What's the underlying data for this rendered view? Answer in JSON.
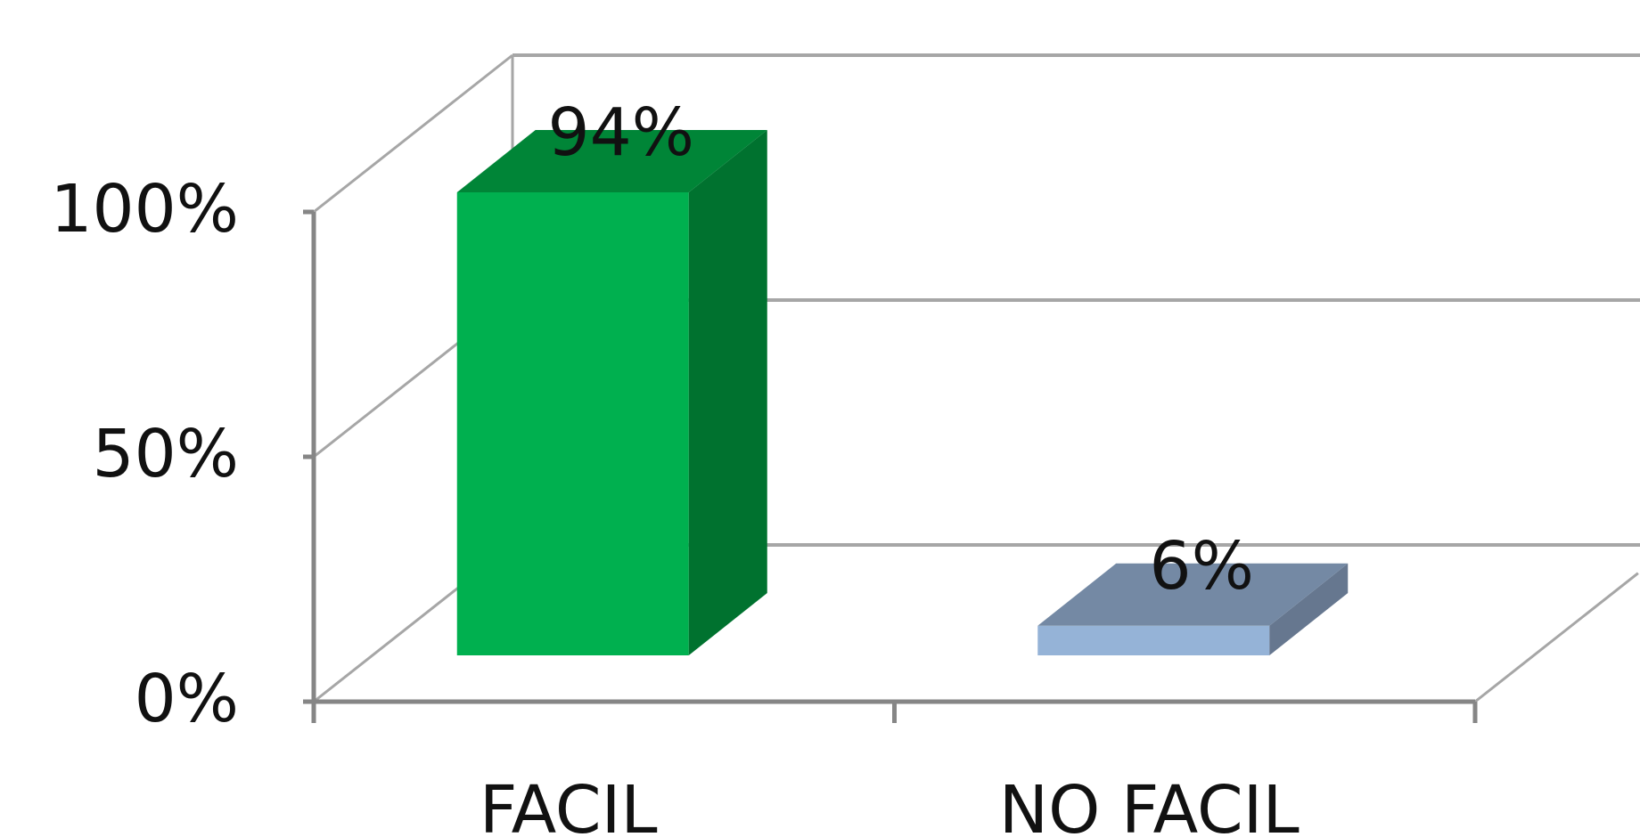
{
  "chart_data": {
    "type": "bar",
    "categories": [
      "FACIL",
      "NO FACIL"
    ],
    "values": [
      94,
      6
    ],
    "data_labels": [
      "94%",
      "6%"
    ],
    "ylim": [
      0,
      100
    ],
    "yticks": [
      0,
      50,
      100
    ],
    "ytick_labels": [
      "0%",
      "50%",
      "100%"
    ],
    "grid": true,
    "three_d": true,
    "bar_colors": [
      {
        "front": "#00b04f",
        "side": "#00722f",
        "top": "#008537"
      },
      {
        "front": "#95b3d7",
        "side": "#66778f",
        "top": "#7489a4"
      }
    ],
    "grid_color": "#a6a6a6",
    "axis_color": "#868686"
  }
}
